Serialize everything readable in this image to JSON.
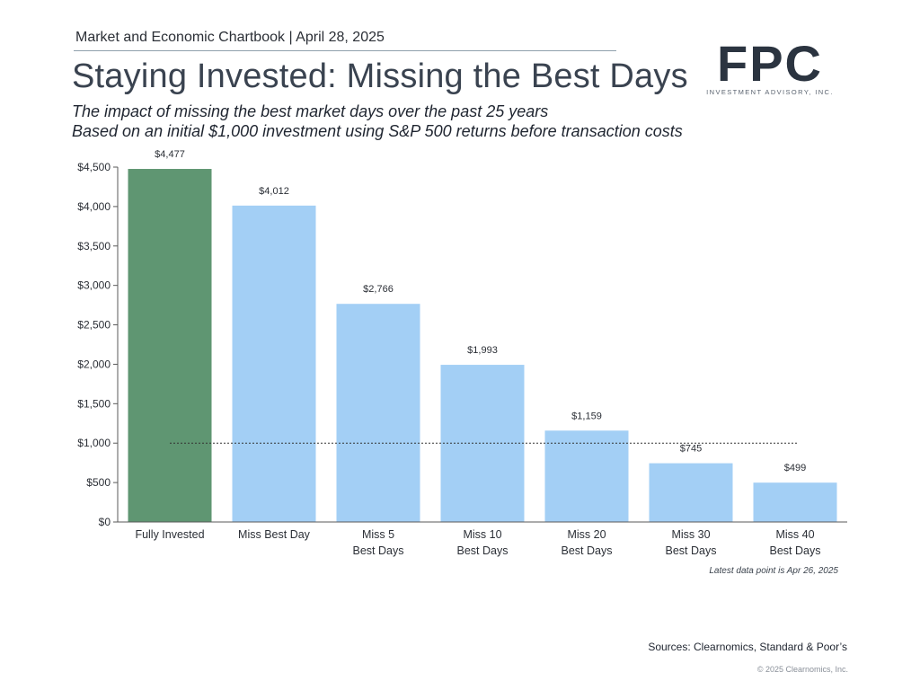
{
  "header": {
    "chartbook": "Market and Economic Chartbook | April 28, 2025",
    "title": "Staying Invested: Missing the Best Days",
    "subtitle_1": "The impact of missing the best market days over the past 25 years",
    "subtitle_2": "Based on an initial $1,000 investment using S&P 500 returns before transaction costs"
  },
  "logo": {
    "text": "FPC",
    "subtext": "INVESTMENT ADVISORY, INC.",
    "color": "#2b3440"
  },
  "colors": {
    "highlight": "#5f9672",
    "bar": "#a3cff5",
    "axis": "#5a5a5a",
    "reference_line": "#333333"
  },
  "chart_data": {
    "type": "bar",
    "categories": [
      [
        "Fully Invested"
      ],
      [
        "Miss Best Day"
      ],
      [
        "Miss 5",
        "Best Days"
      ],
      [
        "Miss 10",
        "Best Days"
      ],
      [
        "Miss 20",
        "Best Days"
      ],
      [
        "Miss 30",
        "Best Days"
      ],
      [
        "Miss 40",
        "Best Days"
      ]
    ],
    "values": [
      4477,
      4012,
      2766,
      1993,
      1159,
      745,
      499
    ],
    "data_labels": [
      "$4,477",
      "$4,012",
      "$2,766",
      "$1,993",
      "$1,159",
      "$745",
      "$499"
    ],
    "highlight_index": 0,
    "ylim": [
      0,
      4500
    ],
    "yticks": [
      0,
      500,
      1000,
      1500,
      2000,
      2500,
      3000,
      3500,
      4000,
      4500
    ],
    "ytick_labels": [
      "$0",
      "$500",
      "$1,000",
      "$1,500",
      "$2,000",
      "$2,500",
      "$3,000",
      "$3,500",
      "$4,000",
      "$4,500"
    ],
    "reference_line": 1000,
    "grid": false
  },
  "footnote": "Latest data point is Apr 26, 2025",
  "sources": "Sources: Clearnomics, Standard & Poor’s",
  "copyright": "© 2025 Clearnomics, Inc."
}
